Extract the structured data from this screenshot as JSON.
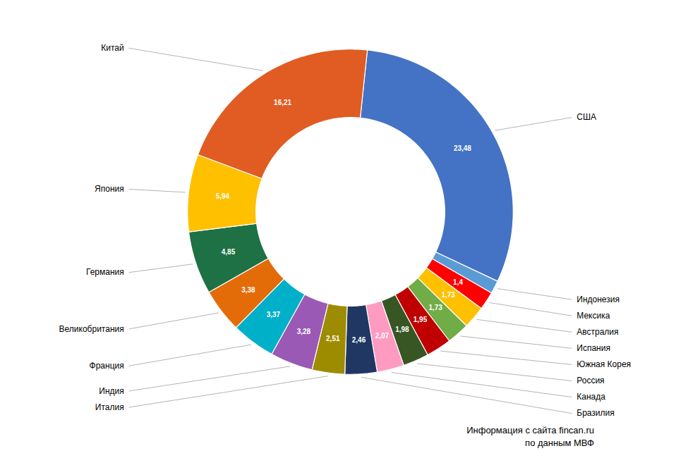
{
  "chart_data": {
    "type": "donut",
    "categories": [
      "США",
      "Индонезия",
      "Мексика",
      "Австралия",
      "Испания",
      "Южная Корея",
      "Россия",
      "Канада",
      "Бразилия",
      "Италия",
      "Индия",
      "Франция",
      "Великобритания",
      "Германия",
      "Япония",
      "Китай"
    ],
    "values": [
      23.48,
      1.0,
      1.4,
      1.73,
      1.73,
      1.95,
      1.98,
      2.07,
      2.46,
      2.51,
      3.28,
      3.37,
      3.38,
      4.85,
      5.94,
      16.21
    ],
    "colors": [
      "#4472C4",
      "#5B9BD5",
      "#FF0000",
      "#FFC000",
      "#70AD47",
      "#C00000",
      "#375623",
      "#FF9AC1",
      "#203764",
      "#9E8C00",
      "#9B59B6",
      "#00B0C8",
      "#E36C09",
      "#1E7145",
      "#FFC000",
      "#E05C22"
    ],
    "data_labels": true,
    "value_labels": [
      "23,48",
      null,
      "1,4",
      "1,73",
      "1,73",
      "1,95",
      "1,98",
      "2,07",
      "2,46",
      "2,51",
      "3,28",
      "3,37",
      "3,38",
      "4,85",
      "5,94",
      "16,21"
    ],
    "annotations": [
      "Информация с сайта fincan.ru",
      "по данным МВФ"
    ]
  }
}
